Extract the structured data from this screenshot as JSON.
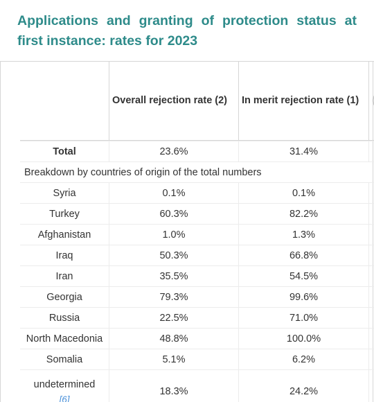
{
  "title": "Applications and granting of protection status at first instance: rates for 2023",
  "columns": {
    "overall": "Overall rejection rate (2)",
    "merit": "In merit rejection rate (1)",
    "next_partial": "("
  },
  "total": {
    "label": "Total",
    "overall": "23.6%",
    "merit": "31.4%"
  },
  "breakdown_label": "Breakdown by countries of origin of the total numbers",
  "rows": [
    {
      "label": "Syria",
      "overall": "0.1%",
      "merit": "0.1%"
    },
    {
      "label": "Turkey",
      "overall": "60.3%",
      "merit": "82.2%"
    },
    {
      "label": "Afghanistan",
      "overall": "1.0%",
      "merit": "1.3%"
    },
    {
      "label": "Iraq",
      "overall": "50.3%",
      "merit": "66.8%"
    },
    {
      "label": "Iran",
      "overall": "35.5%",
      "merit": "54.5%"
    },
    {
      "label": "Georgia",
      "overall": "79.3%",
      "merit": "99.6%"
    },
    {
      "label": "Russia",
      "overall": "22.5%",
      "merit": "71.0%"
    },
    {
      "label": "North Macedonia",
      "overall": "48.8%",
      "merit": "100.0%"
    },
    {
      "label": "Somalia",
      "overall": "5.1%",
      "merit": "6.2%"
    }
  ],
  "last_row": {
    "label": "undetermined",
    "footnote": "[6]",
    "overall": "18.3%",
    "merit": "24.2%"
  },
  "colors": {
    "title": "#2e8b8a",
    "link": "#4a90d9"
  }
}
